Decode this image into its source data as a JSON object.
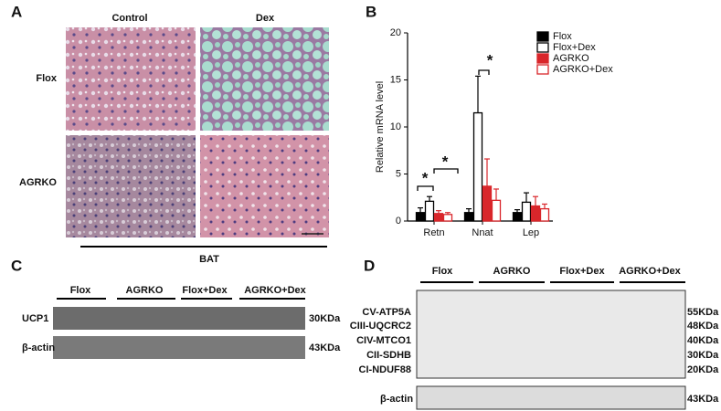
{
  "panel_a": {
    "letter": "A",
    "columns": [
      "Control",
      "Dex"
    ],
    "rows": [
      "Flox",
      "AGRKO"
    ],
    "tissue": "BAT"
  },
  "panel_c": {
    "letter": "C",
    "groups": [
      "Flox",
      "AGRKO",
      "Flox+Dex",
      "AGRKO+Dex"
    ],
    "proteins": [
      "UCP1",
      "β-actin"
    ],
    "sizes": [
      "30KDa",
      "43KDa"
    ]
  },
  "panel_d": {
    "letter": "D",
    "groups": [
      "Flox",
      "AGRKO",
      "Flox+Dex",
      "AGRKO+Dex"
    ],
    "proteins": [
      "CV-ATP5A",
      "CIII-UQCRC2",
      "CIV-MTCO1",
      "CII-SDHB",
      "CI-NDUF88",
      "β-actin"
    ],
    "sizes": [
      "55KDa",
      "48KDa",
      "40KDa",
      "30KDa",
      "20KDa",
      "43KDa"
    ]
  },
  "chart_data": {
    "type": "bar",
    "letter": "B",
    "y_label": "Relative  mRNA level",
    "categories": [
      "Retn",
      "Nnat",
      "Lep"
    ],
    "series": [
      {
        "name": "Flox",
        "color": "#000000",
        "fill": "solid",
        "values": [
          0.9,
          0.9,
          0.9
        ],
        "errors": [
          0.5,
          0.4,
          0.3
        ]
      },
      {
        "name": "Flox+Dex",
        "color": "#000000",
        "fill": "open",
        "values": [
          2.1,
          11.5,
          2.0
        ],
        "errors": [
          0.5,
          3.9,
          1.0
        ]
      },
      {
        "name": "AGRKO",
        "color": "#d9262b",
        "fill": "solid",
        "values": [
          0.8,
          3.7,
          1.6
        ],
        "errors": [
          0.3,
          2.9,
          1.0
        ]
      },
      {
        "name": "AGRKO+Dex",
        "color": "#d9262b",
        "fill": "open",
        "values": [
          0.7,
          2.2,
          1.3
        ],
        "errors": [
          0.2,
          1.2,
          0.5
        ]
      }
    ],
    "ylim": [
      0,
      20
    ],
    "yticks": [
      0,
      5,
      10,
      15,
      20
    ],
    "annotations": [
      "*",
      "*",
      "*"
    ]
  }
}
